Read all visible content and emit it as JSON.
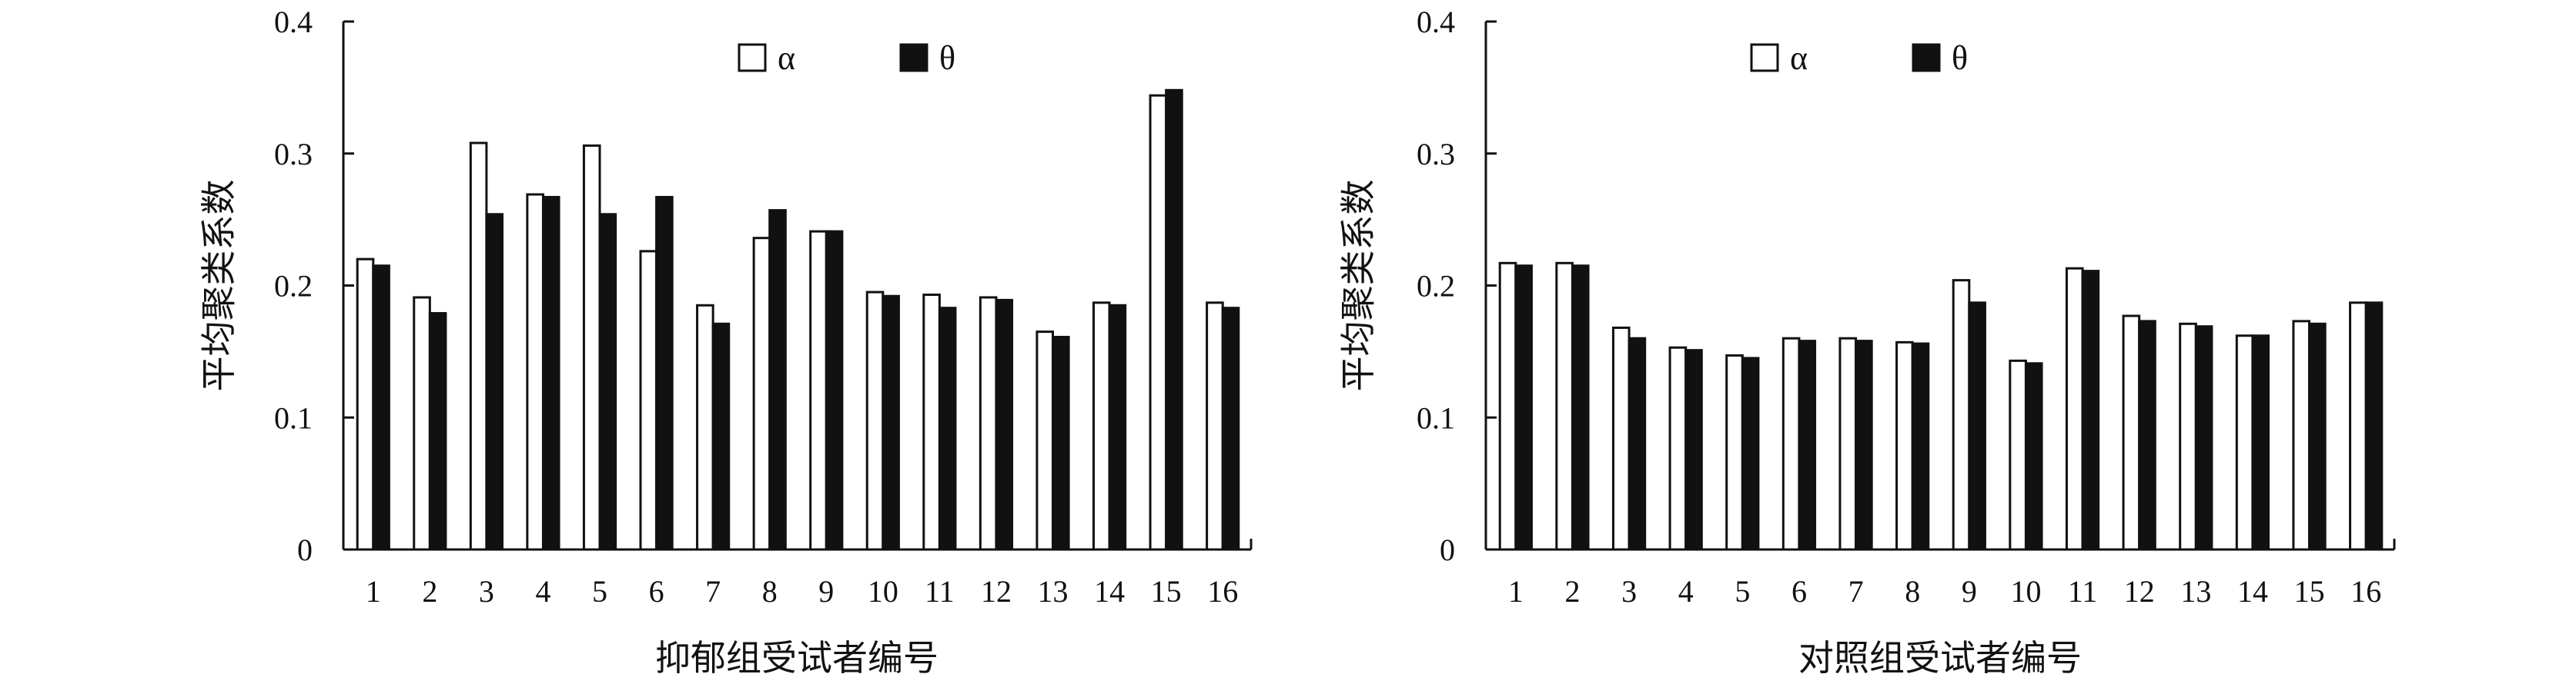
{
  "chart_data": [
    {
      "type": "bar",
      "title": "",
      "xlabel": "抑郁组受试者编号",
      "ylabel": "平均聚类系数",
      "ylim": [
        0,
        0.4
      ],
      "yticks": [
        "0",
        "0.1",
        "0.2",
        "0.3",
        "0.4"
      ],
      "categories": [
        "1",
        "2",
        "3",
        "4",
        "5",
        "6",
        "7",
        "8",
        "9",
        "10",
        "11",
        "12",
        "13",
        "14",
        "15",
        "16"
      ],
      "legend_position": "top-center",
      "series": [
        {
          "name": "α",
          "color": "#ffffff",
          "values": [
            0.22,
            0.191,
            0.308,
            0.269,
            0.306,
            0.226,
            0.185,
            0.236,
            0.241,
            0.195,
            0.193,
            0.191,
            0.165,
            0.187,
            0.344,
            0.187
          ]
        },
        {
          "name": "θ",
          "color": "#111111",
          "values": [
            0.215,
            0.179,
            0.254,
            0.267,
            0.254,
            0.267,
            0.171,
            0.257,
            0.241,
            0.192,
            0.183,
            0.189,
            0.161,
            0.185,
            0.348,
            0.183
          ]
        }
      ]
    },
    {
      "type": "bar",
      "title": "",
      "xlabel": "对照组受试者编号",
      "ylabel": "平均聚类系数",
      "ylim": [
        0,
        0.4
      ],
      "yticks": [
        "0",
        "0.1",
        "0.2",
        "0.3",
        "0.4"
      ],
      "categories": [
        "1",
        "2",
        "3",
        "4",
        "5",
        "6",
        "7",
        "8",
        "9",
        "10",
        "11",
        "12",
        "13",
        "14",
        "15",
        "16"
      ],
      "legend_position": "top-center",
      "series": [
        {
          "name": "α",
          "color": "#ffffff",
          "values": [
            0.217,
            0.217,
            0.168,
            0.153,
            0.147,
            0.16,
            0.16,
            0.157,
            0.204,
            0.143,
            0.213,
            0.177,
            0.171,
            0.162,
            0.173,
            0.187
          ]
        },
        {
          "name": "θ",
          "color": "#111111",
          "values": [
            0.215,
            0.215,
            0.16,
            0.151,
            0.145,
            0.158,
            0.158,
            0.156,
            0.187,
            0.141,
            0.211,
            0.173,
            0.169,
            0.162,
            0.171,
            0.187
          ]
        }
      ]
    }
  ]
}
